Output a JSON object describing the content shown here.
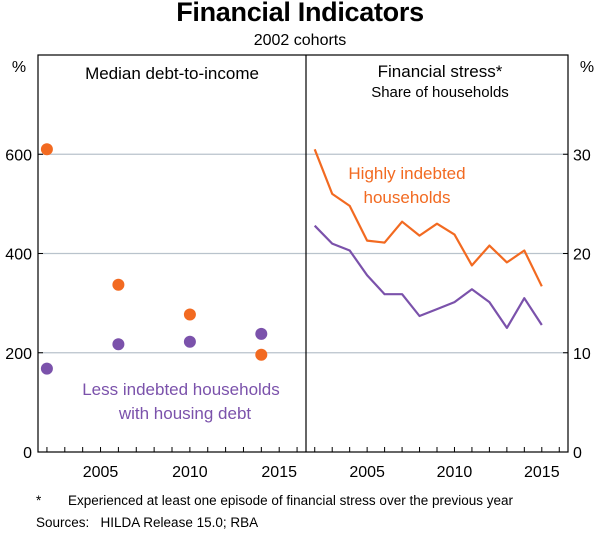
{
  "title": "Financial Indicators",
  "subtitle": "2002 cohorts",
  "colors": {
    "orange": "#f26a21",
    "purple": "#7b52ab",
    "grid": "#b9c3cc",
    "axis": "#000000"
  },
  "chart_data": [
    {
      "type": "scatter",
      "title": "Median debt-to-income",
      "ylabel": "%",
      "ylim": [
        0,
        800
      ],
      "yticks": [
        0,
        200,
        400,
        600
      ],
      "xlim": [
        2001.5,
        2016.5
      ],
      "xticks": [
        2005,
        2010,
        2015
      ],
      "series": [
        {
          "name": "Highly indebted households",
          "color": "#f26a21",
          "x": [
            2002,
            2006,
            2010,
            2014
          ],
          "values": [
            610,
            337,
            277,
            196
          ]
        },
        {
          "name": "Less indebted households with housing debt",
          "color": "#7b52ab",
          "x": [
            2002,
            2006,
            2010,
            2014
          ],
          "values": [
            168,
            217,
            222,
            238
          ]
        }
      ],
      "annotation": [
        "Less indebted households",
        "with housing debt"
      ]
    },
    {
      "type": "line",
      "title": "Financial stress*",
      "subtitle": "Share of households",
      "ylabel": "%",
      "ylim": [
        0,
        40
      ],
      "yticks": [
        0,
        10,
        20,
        30
      ],
      "xlim": [
        2001.5,
        2016.5
      ],
      "xticks": [
        2005,
        2010,
        2015
      ],
      "x": [
        2002,
        2003,
        2004,
        2005,
        2006,
        2007,
        2008,
        2009,
        2010,
        2011,
        2012,
        2013,
        2014,
        2015
      ],
      "series": [
        {
          "name": "Highly indebted households",
          "color": "#f26a21",
          "values": [
            30.5,
            26,
            24.8,
            21.3,
            21.1,
            23.2,
            21.8,
            23,
            21.9,
            18.8,
            20.8,
            19.1,
            20.3,
            16.7
          ]
        },
        {
          "name": "Less indebted households with housing debt",
          "color": "#7b52ab",
          "values": [
            22.8,
            21,
            20.3,
            17.8,
            15.9,
            15.9,
            13.7,
            14.4,
            15.1,
            16.4,
            15.1,
            12.5,
            15.5,
            12.8
          ]
        }
      ],
      "annotation": [
        "Highly indebted",
        "households"
      ]
    }
  ],
  "footnote_marker": "*",
  "footnote_text": "Experienced at least one episode of financial stress over the previous year",
  "sources": "Sources:   HILDA Release 15.0; RBA"
}
